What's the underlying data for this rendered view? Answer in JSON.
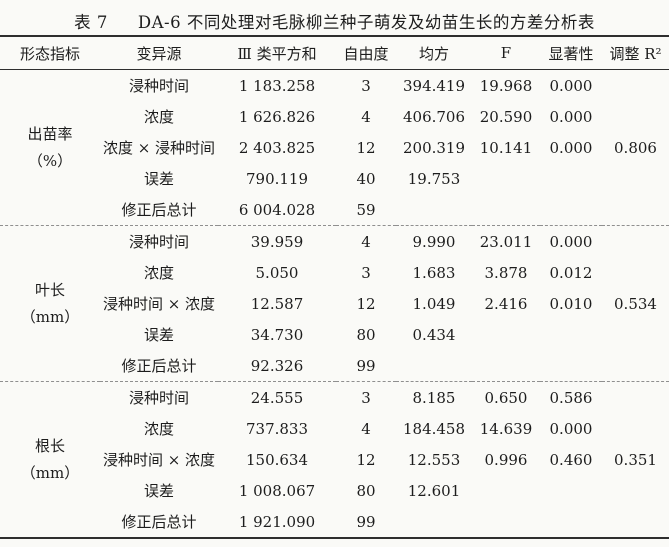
{
  "title": {
    "prefix": "表 7",
    "text": "DA-6 不同处理对毛脉柳兰种子萌发及幼苗生长的方差分析表"
  },
  "table": {
    "columns": [
      "形态指标",
      "变异源",
      "Ⅲ 类平方和",
      "自由度",
      "均方",
      "F",
      "显著性",
      "调整 R²"
    ],
    "sections": [
      {
        "indicator": [
          "出苗率",
          "（%）"
        ],
        "rows": [
          [
            "浸种时间",
            "1 183.258",
            "3",
            "394.419",
            "19.968",
            "0.000",
            ""
          ],
          [
            "浓度",
            "1 626.826",
            "4",
            "406.706",
            "20.590",
            "0.000",
            ""
          ],
          [
            "浓度 × 浸种时间",
            "2 403.825",
            "12",
            "200.319",
            "10.141",
            "0.000",
            "0.806"
          ],
          [
            "误差",
            "790.119",
            "40",
            "19.753",
            "",
            "",
            ""
          ],
          [
            "修正后总计",
            "6 004.028",
            "59",
            "",
            "",
            "",
            ""
          ]
        ]
      },
      {
        "indicator": [
          "叶长",
          "（mm）"
        ],
        "rows": [
          [
            "浸种时间",
            "39.959",
            "4",
            "9.990",
            "23.011",
            "0.000",
            ""
          ],
          [
            "浓度",
            "5.050",
            "3",
            "1.683",
            "3.878",
            "0.012",
            ""
          ],
          [
            "浸种时间 × 浓度",
            "12.587",
            "12",
            "1.049",
            "2.416",
            "0.010",
            "0.534"
          ],
          [
            "误差",
            "34.730",
            "80",
            "0.434",
            "",
            "",
            ""
          ],
          [
            "修正后总计",
            "92.326",
            "99",
            "",
            "",
            "",
            ""
          ]
        ]
      },
      {
        "indicator": [
          "根长",
          "（mm）"
        ],
        "rows": [
          [
            "浸种时间",
            "24.555",
            "3",
            "8.185",
            "0.650",
            "0.586",
            ""
          ],
          [
            "浓度",
            "737.833",
            "4",
            "184.458",
            "14.639",
            "0.000",
            ""
          ],
          [
            "浸种时间 × 浓度",
            "150.634",
            "12",
            "12.553",
            "0.996",
            "0.460",
            "0.351"
          ],
          [
            "误差",
            "1 008.067",
            "80",
            "12.601",
            "",
            "",
            ""
          ],
          [
            "修正后总计",
            "1 921.090",
            "99",
            "",
            "",
            "",
            ""
          ]
        ]
      }
    ]
  },
  "colors": {
    "background": "#fafaf7",
    "text": "#1d1d1d",
    "rule": "#2e2e2e",
    "dashed_rule": "#8f8f8f"
  }
}
